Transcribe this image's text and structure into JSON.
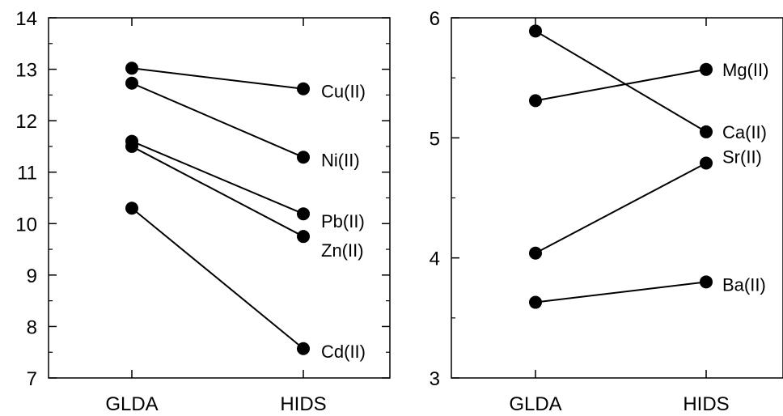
{
  "chart_data": [
    {
      "type": "line",
      "categories": [
        "GLDA",
        "HIDS"
      ],
      "ylim": [
        7,
        14
      ],
      "yticks": [
        7,
        8,
        9,
        10,
        11,
        12,
        13,
        14
      ],
      "grid": false,
      "series": [
        {
          "name": "Cu(II)",
          "values": [
            13.02,
            12.62
          ]
        },
        {
          "name": "Ni(II)",
          "values": [
            12.73,
            11.29
          ]
        },
        {
          "name": "Pb(II)",
          "values": [
            11.6,
            10.19
          ]
        },
        {
          "name": "Zn(II)",
          "values": [
            11.5,
            9.75
          ]
        },
        {
          "name": "Cd(II)",
          "values": [
            10.3,
            7.57
          ]
        }
      ]
    },
    {
      "type": "line",
      "categories": [
        "GLDA",
        "HIDS"
      ],
      "ylim": [
        3,
        6
      ],
      "yticks": [
        3,
        4,
        5,
        6
      ],
      "grid": false,
      "series": [
        {
          "name": "Mg(II)",
          "values": [
            5.31,
            5.57
          ]
        },
        {
          "name": "Ca(II)",
          "values": [
            5.89,
            5.05
          ]
        },
        {
          "name": "Sr(II)",
          "values": [
            4.04,
            4.79
          ]
        },
        {
          "name": "Ba(II)",
          "values": [
            3.63,
            3.8
          ]
        }
      ]
    }
  ]
}
